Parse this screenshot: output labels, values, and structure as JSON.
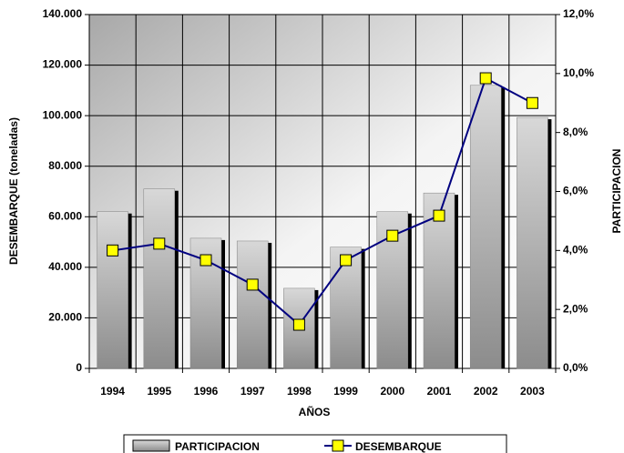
{
  "chart_data": {
    "type": "bar_line",
    "x_label": "AÑOS",
    "y_label": "DESEMBARQUE (toneladas)",
    "y2_label": "PARTICIPACION",
    "categories": [
      "1994",
      "1995",
      "1996",
      "1997",
      "1998",
      "1999",
      "2000",
      "2001",
      "2002",
      "2003"
    ],
    "series": [
      {
        "name": "PARTICIPACION",
        "type": "bar",
        "color": "#b8b8b8",
        "values": [
          62000,
          71000,
          51500,
          50400,
          31700,
          48000,
          62000,
          69400,
          112000,
          99300
        ]
      },
      {
        "name": "DESEMBARQUE",
        "type": "line",
        "axis": "y2",
        "color": "#000080",
        "marker_color": "#ffff00",
        "values": [
          4.0,
          4.23,
          3.67,
          2.84,
          1.48,
          3.67,
          4.5,
          5.18,
          9.84,
          9.0
        ]
      }
    ],
    "ylim": [
      0,
      140000
    ],
    "yticks": [
      0,
      {
        "value": 20000,
        "label": "20.000"
      },
      {
        "value": 40000,
        "label": "40.000"
      },
      {
        "value": 60000,
        "label": "60.000"
      },
      {
        "value": 80000,
        "label": "80.000"
      },
      {
        "value": 100000,
        "label": "100.000"
      },
      {
        "value": 120000,
        "label": "120.000"
      },
      {
        "value": 140000,
        "label": "140.000"
      }
    ],
    "y2lim": [
      0,
      12
    ],
    "y2ticks": [
      {
        "value": 0,
        "label": "0,0%"
      },
      {
        "value": 2,
        "label": "2,0%"
      },
      {
        "value": 4,
        "label": "4,0%"
      },
      {
        "value": 6,
        "label": "6,0%"
      },
      {
        "value": 8,
        "label": "8,0%"
      },
      {
        "value": 10,
        "label": "10,0%"
      },
      {
        "value": 12,
        "label": "12,0%"
      }
    ],
    "grid": true
  }
}
